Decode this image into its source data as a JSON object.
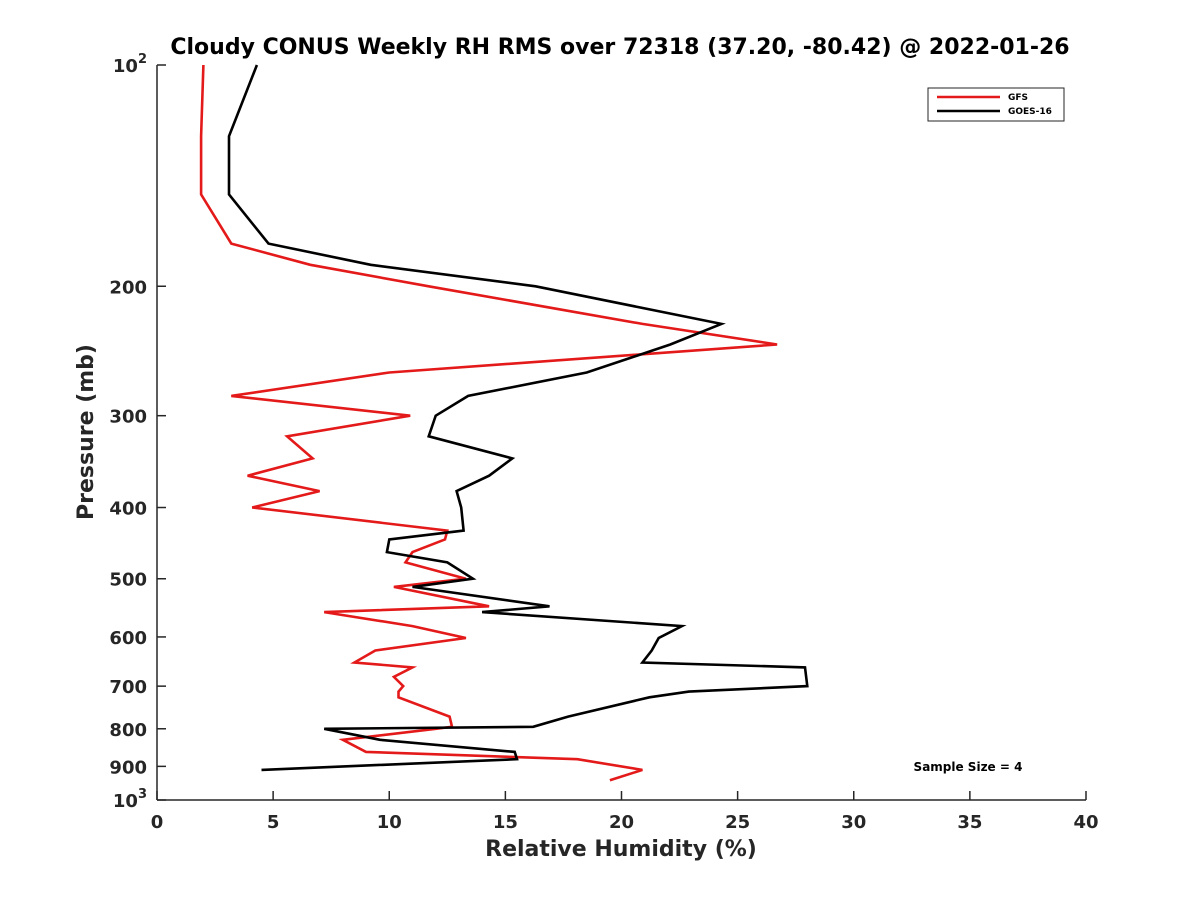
{
  "chart_data": {
    "type": "line",
    "title": "Cloudy CONUS Weekly RH RMS over 72318 (37.20, -80.42) @ 2022-01-26",
    "xlabel": "Relative Humidity (%)",
    "ylabel": "Pressure (mb)",
    "xlim": [
      0,
      40
    ],
    "ylim": [
      100,
      1000
    ],
    "yscale": "log",
    "y_reversed": true,
    "grid": false,
    "legend_position": "top-right",
    "x_ticks": [
      "0",
      "5",
      "10",
      "15",
      "20",
      "25",
      "30",
      "35",
      "40"
    ],
    "y_ticks": [
      {
        "value": 100,
        "base": "10",
        "exp": "2"
      },
      {
        "value": 200,
        "label": "200"
      },
      {
        "value": 300,
        "label": "300"
      },
      {
        "value": 400,
        "label": "400"
      },
      {
        "value": 500,
        "label": "500"
      },
      {
        "value": 600,
        "label": "600"
      },
      {
        "value": 700,
        "label": "700"
      },
      {
        "value": 800,
        "label": "800"
      },
      {
        "value": 900,
        "label": "900"
      },
      {
        "value": 1000,
        "base": "10",
        "exp": "3"
      }
    ],
    "series": [
      {
        "name": "GFS",
        "color": "#e41a1a",
        "points": [
          [
            2.0,
            100
          ],
          [
            1.9,
            125
          ],
          [
            1.9,
            150
          ],
          [
            3.2,
            175
          ],
          [
            6.6,
            187
          ],
          [
            11.7,
            200
          ],
          [
            20.9,
            225
          ],
          [
            26.7,
            240
          ],
          [
            10.0,
            262
          ],
          [
            3.2,
            282
          ],
          [
            10.9,
            300
          ],
          [
            5.6,
            320
          ],
          [
            6.7,
            343
          ],
          [
            3.9,
            362
          ],
          [
            7.0,
            380
          ],
          [
            4.1,
            400
          ],
          [
            12.5,
            430
          ],
          [
            12.4,
            442
          ],
          [
            11.0,
            460
          ],
          [
            10.7,
            475
          ],
          [
            13.3,
            500
          ],
          [
            10.2,
            513
          ],
          [
            14.3,
            545
          ],
          [
            7.2,
            555
          ],
          [
            11.0,
            580
          ],
          [
            13.3,
            602
          ],
          [
            9.4,
            626
          ],
          [
            8.5,
            650
          ],
          [
            11.0,
            660
          ],
          [
            10.2,
            680
          ],
          [
            10.6,
            700
          ],
          [
            10.4,
            712
          ],
          [
            10.4,
            725
          ],
          [
            12.6,
            770
          ],
          [
            12.7,
            795
          ],
          [
            12.0,
            800
          ],
          [
            8.0,
            828
          ],
          [
            9.0,
            860
          ],
          [
            18.1,
            880
          ],
          [
            20.9,
            910
          ],
          [
            19.5,
            940
          ]
        ]
      },
      {
        "name": "GOES-16",
        "color": "#000000",
        "points": [
          [
            4.3,
            100
          ],
          [
            3.1,
            125
          ],
          [
            3.1,
            150
          ],
          [
            4.8,
            175
          ],
          [
            9.2,
            187
          ],
          [
            16.3,
            200
          ],
          [
            24.3,
            225
          ],
          [
            22.1,
            240
          ],
          [
            18.5,
            262
          ],
          [
            13.4,
            282
          ],
          [
            12.0,
            300
          ],
          [
            11.7,
            320
          ],
          [
            15.3,
            343
          ],
          [
            14.3,
            362
          ],
          [
            12.9,
            380
          ],
          [
            13.1,
            400
          ],
          [
            13.2,
            430
          ],
          [
            10.0,
            442
          ],
          [
            9.9,
            460
          ],
          [
            12.5,
            475
          ],
          [
            13.6,
            500
          ],
          [
            11.0,
            513
          ],
          [
            16.9,
            545
          ],
          [
            14.0,
            555
          ],
          [
            22.6,
            580
          ],
          [
            21.6,
            602
          ],
          [
            21.3,
            626
          ],
          [
            20.9,
            650
          ],
          [
            27.9,
            660
          ],
          [
            28.0,
            700
          ],
          [
            22.9,
            712
          ],
          [
            21.2,
            725
          ],
          [
            17.7,
            770
          ],
          [
            16.2,
            795
          ],
          [
            7.2,
            800
          ],
          [
            9.6,
            828
          ],
          [
            15.4,
            860
          ],
          [
            15.5,
            880
          ],
          [
            4.5,
            910
          ]
        ]
      }
    ],
    "annotation": "Sample Size = 4"
  }
}
